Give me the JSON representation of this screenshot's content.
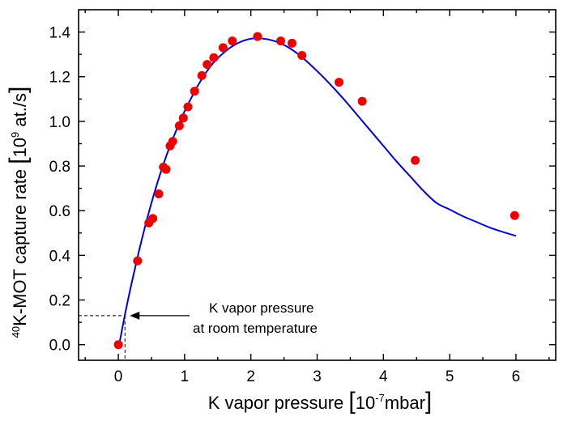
{
  "chart_data": {
    "type": "scatter",
    "xlabel": {
      "main": "K vapor pressure ",
      "bracket_open": "[",
      "unit_base": "10",
      "unit_exp": "-7",
      "unit_rest": "mbar",
      "bracket_close": "]"
    },
    "ylabel": {
      "sup": "40",
      "main": "K-MOT capture rate ",
      "bracket_open": "[",
      "unit_base": "10",
      "unit_exp": "9",
      "unit_rest": " at./s",
      "bracket_close": "]"
    },
    "xlim": [
      -0.6,
      6.6
    ],
    "ylim": [
      -0.07,
      1.5
    ],
    "x_ticks": [
      0,
      1,
      2,
      3,
      4,
      5,
      6
    ],
    "y_ticks": [
      0.0,
      0.2,
      0.4,
      0.6,
      0.8,
      1.0,
      1.2,
      1.4
    ],
    "x_tick_labels": [
      "0",
      "1",
      "2",
      "3",
      "4",
      "5",
      "6"
    ],
    "y_tick_labels": [
      "0.0",
      "0.2",
      "0.4",
      "0.6",
      "0.8",
      "1.0",
      "1.2",
      "1.4"
    ],
    "points": {
      "color": "#ee0000",
      "x": [
        0.0,
        0.29,
        0.46,
        0.52,
        0.61,
        0.68,
        0.72,
        0.78,
        0.82,
        0.92,
        0.98,
        1.05,
        1.15,
        1.26,
        1.34,
        1.44,
        1.58,
        1.72,
        2.1,
        2.45,
        2.62,
        2.77,
        3.33,
        3.68,
        4.48,
        5.98
      ],
      "y": [
        0.0,
        0.375,
        0.545,
        0.565,
        0.675,
        0.795,
        0.785,
        0.89,
        0.91,
        0.98,
        1.015,
        1.065,
        1.135,
        1.205,
        1.255,
        1.285,
        1.33,
        1.36,
        1.38,
        1.36,
        1.35,
        1.295,
        1.175,
        1.09,
        0.825,
        0.578
      ]
    },
    "fit": {
      "color": "#0000dd",
      "x": [
        0.0,
        0.1,
        0.2,
        0.3,
        0.4,
        0.5,
        0.6,
        0.7,
        0.8,
        0.9,
        1.0,
        1.2,
        1.4,
        1.6,
        1.8,
        2.0,
        2.2,
        2.4,
        2.6,
        2.8,
        3.0,
        3.2,
        3.4,
        3.6,
        3.8,
        4.0,
        4.2,
        4.4,
        4.6,
        4.8,
        5.0,
        5.2,
        5.4,
        5.6,
        5.8,
        6.0
      ],
      "y": [
        -0.02,
        0.135,
        0.275,
        0.405,
        0.525,
        0.635,
        0.735,
        0.825,
        0.905,
        0.978,
        1.045,
        1.16,
        1.25,
        1.31,
        1.35,
        1.37,
        1.37,
        1.355,
        1.325,
        1.28,
        1.225,
        1.165,
        1.1,
        1.03,
        0.96,
        0.89,
        0.82,
        0.755,
        0.69,
        0.635,
        0.605,
        0.575,
        0.55,
        0.525,
        0.505,
        0.487
      ]
    },
    "annotation": {
      "line1": "K vapor pressure",
      "line2": "at room temperature",
      "x": 0.1,
      "y": 0.13
    },
    "grid": false,
    "legend": "none"
  }
}
